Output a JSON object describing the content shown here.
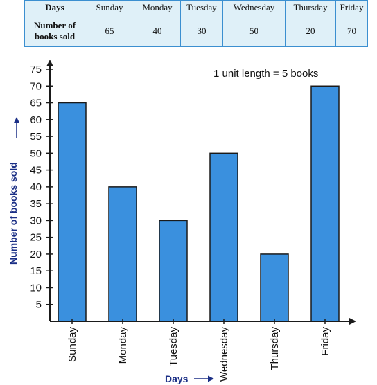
{
  "table": {
    "row1_header": "Days",
    "row2_header_line1": "Number of",
    "row2_header_line2": "books sold",
    "days": [
      "Sunday",
      "Monday",
      "Tuesday",
      "Wednesday",
      "Thursday",
      "Friday"
    ],
    "books": [
      "65",
      "40",
      "30",
      "50",
      "20",
      "70"
    ],
    "bg_color": "#dff0f8",
    "border_color": "#3b8fd0"
  },
  "chart_data": {
    "type": "bar",
    "categories": [
      "Sunday",
      "Monday",
      "Tuesday",
      "Wednesday",
      "Thursday",
      "Friday"
    ],
    "values": [
      65,
      40,
      30,
      50,
      20,
      70
    ],
    "ylim": [
      0,
      75
    ],
    "yticks": [
      5,
      10,
      15,
      20,
      25,
      30,
      35,
      40,
      45,
      50,
      55,
      60,
      65,
      70,
      75
    ],
    "xlabel": "Days",
    "ylabel": "Number of books sold",
    "annotation": "1 unit length = 5 books",
    "grid": false,
    "bar_color": "#3a90de",
    "label_color": "#1b2f86"
  }
}
